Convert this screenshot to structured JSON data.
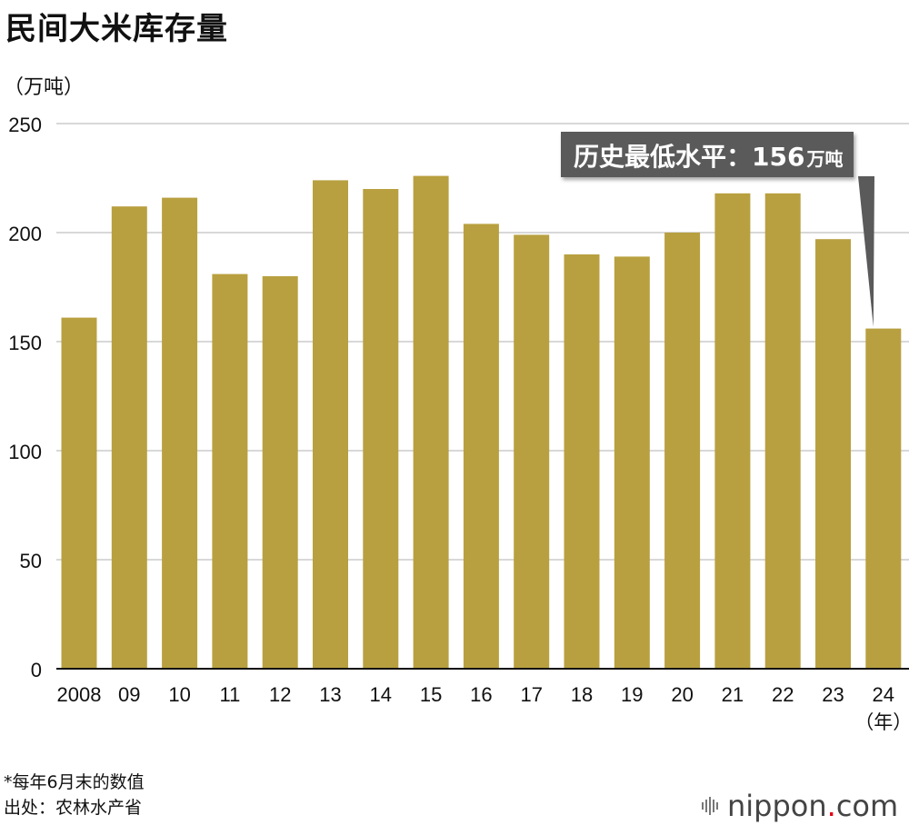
{
  "title": "民间大米库存量",
  "unit_label": "（万吨）",
  "x_unit_label": "（年）",
  "callout": {
    "main": "历史最低水平：156",
    "unit": "万吨"
  },
  "notes": [
    "*每年6月末的数值",
    "出处：农林水产省"
  ],
  "brand": {
    "name": "nippon",
    "dot": ".",
    "tld": "com",
    "accent_color": "#e60012"
  },
  "colors": {
    "bar": "#b8a040",
    "grid": "#cccccc",
    "callout_bg": "#5a5a5a"
  },
  "chart_data": {
    "type": "bar",
    "categories": [
      "2008",
      "09",
      "10",
      "11",
      "12",
      "13",
      "14",
      "15",
      "16",
      "17",
      "18",
      "19",
      "20",
      "21",
      "22",
      "23",
      "24"
    ],
    "values": [
      161,
      212,
      216,
      181,
      180,
      224,
      220,
      226,
      204,
      199,
      190,
      189,
      200,
      218,
      218,
      197,
      156
    ],
    "title": "民间大米库存量",
    "xlabel": "（年）",
    "ylabel": "（万吨）",
    "ylim": [
      0,
      250
    ],
    "yticks": [
      0,
      50,
      100,
      150,
      200,
      250
    ],
    "grid": true,
    "annotation": {
      "category": "24",
      "value": 156,
      "text": "历史最低水平：156万吨"
    }
  }
}
